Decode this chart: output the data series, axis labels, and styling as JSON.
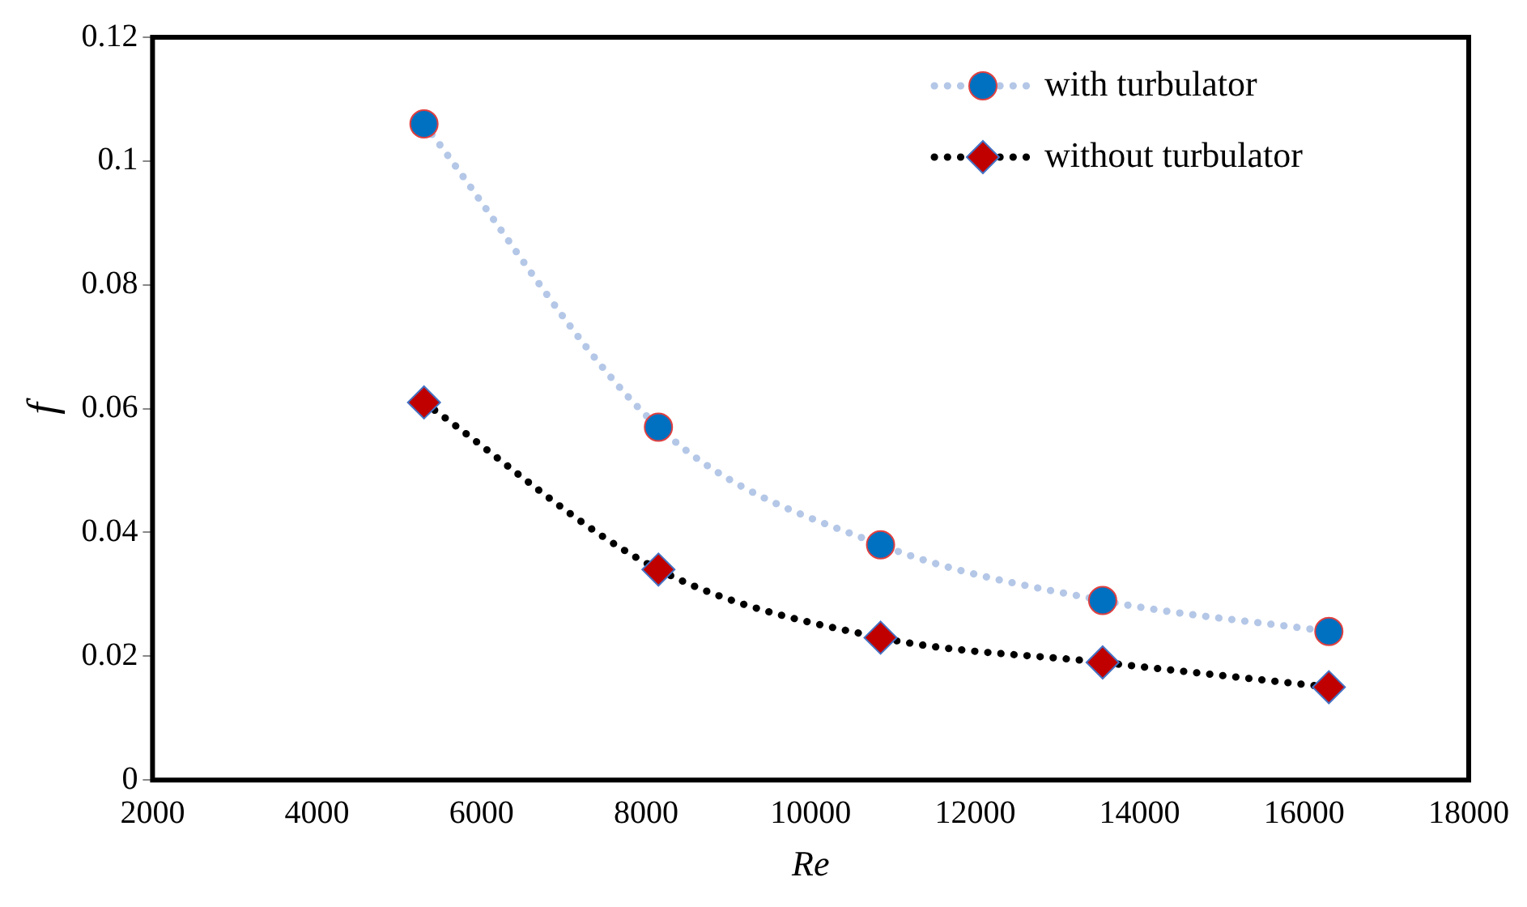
{
  "chart_data": {
    "type": "line",
    "xlabel": "Re",
    "ylabel": "f",
    "xlim": [
      2000,
      18000
    ],
    "xticks": [
      2000,
      4000,
      6000,
      8000,
      10000,
      12000,
      14000,
      16000,
      18000
    ],
    "ylim": [
      0,
      0.12
    ],
    "yticks": [
      0,
      0.02,
      0.04,
      0.06,
      0.08,
      0.1,
      0.12
    ],
    "grid": false,
    "legend": "top right",
    "line_style": "dotted",
    "x": [
      5300,
      8150,
      10850,
      13550,
      16300
    ],
    "series": [
      {
        "name": "with turbulator",
        "color": "#0070c0",
        "marker": "circle",
        "values": [
          0.106,
          0.057,
          0.038,
          0.029,
          0.024
        ]
      },
      {
        "name": "without turbulator",
        "color": "#c00000",
        "marker": "diamond",
        "values": [
          0.061,
          0.034,
          0.023,
          0.019,
          0.015
        ]
      }
    ]
  }
}
